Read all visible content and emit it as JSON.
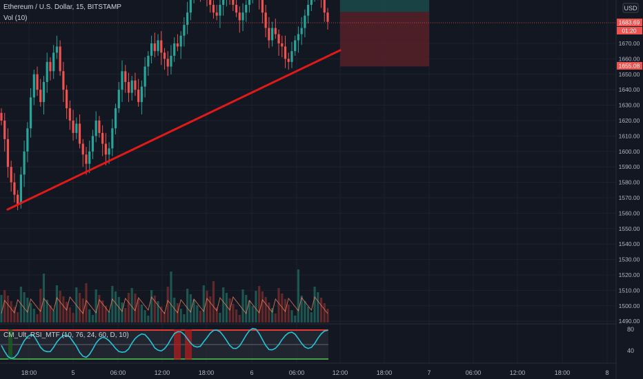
{
  "header": {
    "symbol_title": "Ethereum / U.S. Dollar, 15, BITSTAMP",
    "volume_legend": "Vol (10)",
    "indicator_legend": "CM_Ult_RSI_MTF (10, 76, 24, 60, D, 10)",
    "currency": "USD"
  },
  "price_axis": {
    "labels": [
      "1670.00",
      "1660.00",
      "1650.00",
      "1640.00",
      "1630.00",
      "1620.00",
      "1610.00",
      "1600.00",
      "1590.00",
      "1580.00",
      "1570.00",
      "1560.00",
      "1550.00",
      "1540.00",
      "1530.00",
      "1520.00",
      "1510.00",
      "1500.00",
      "1490.00"
    ],
    "top_partial_label": "8",
    "current_price": "1683.69",
    "countdown": "01:20",
    "stop_price": "1655.08"
  },
  "time_axis": {
    "labels": [
      "18:00",
      "5",
      "06:00",
      "12:00",
      "18:00",
      "6",
      "06:00",
      "12:00",
      "18:00",
      "7",
      "06:00",
      "12:00",
      "18:00",
      "8"
    ]
  },
  "indicator_axis": {
    "labels": [
      "80",
      "40"
    ]
  },
  "colors": {
    "background": "#131722",
    "up": "#26a69a",
    "down": "#ef5350",
    "trendline": "#e01919",
    "grid": "#1e222d",
    "axis_text": "#b2b5be",
    "price_tag": "#ef5350",
    "rsi_line": "#26c6da",
    "rsi_upper": "#e53935",
    "rsi_lower": "#43a047"
  },
  "chart_data": {
    "type": "candlestick",
    "title": "Ethereum / U.S. Dollar, 15, BITSTAMP",
    "y_range": [
      1487,
      1712
    ],
    "close_series": [
      1620,
      1608,
      1590,
      1580,
      1572,
      1566,
      1585,
      1600,
      1615,
      1635,
      1650,
      1640,
      1632,
      1645,
      1658,
      1652,
      1664,
      1668,
      1652,
      1640,
      1628,
      1620,
      1612,
      1618,
      1605,
      1598,
      1592,
      1600,
      1610,
      1620,
      1612,
      1605,
      1598,
      1602,
      1615,
      1628,
      1640,
      1652,
      1645,
      1638,
      1646,
      1640,
      1632,
      1642,
      1655,
      1662,
      1670,
      1665,
      1672,
      1664,
      1660,
      1655,
      1662,
      1670,
      1668,
      1675,
      1682,
      1690,
      1700,
      1708,
      1712,
      1705,
      1712,
      1700,
      1695,
      1690,
      1688,
      1695,
      1700,
      1705,
      1700,
      1695,
      1690,
      1685,
      1690,
      1695,
      1700,
      1705,
      1710,
      1700,
      1690,
      1680,
      1672,
      1680,
      1676,
      1670,
      1668,
      1660,
      1658,
      1665,
      1672,
      1676,
      1680,
      1688,
      1695,
      1700,
      1706,
      1710,
      1700,
      1690,
      1684
    ],
    "trendline": {
      "from": [
        1,
        1562
      ],
      "to": [
        100,
        1665
      ]
    },
    "current_price": 1683.69,
    "stop_price": 1655.08,
    "position_box": {
      "entry": 1683.69,
      "target_above": true,
      "stop": 1655.08
    },
    "rsi": {
      "upper": 76,
      "lower": 24,
      "axis_labels": [
        80,
        40
      ]
    }
  }
}
